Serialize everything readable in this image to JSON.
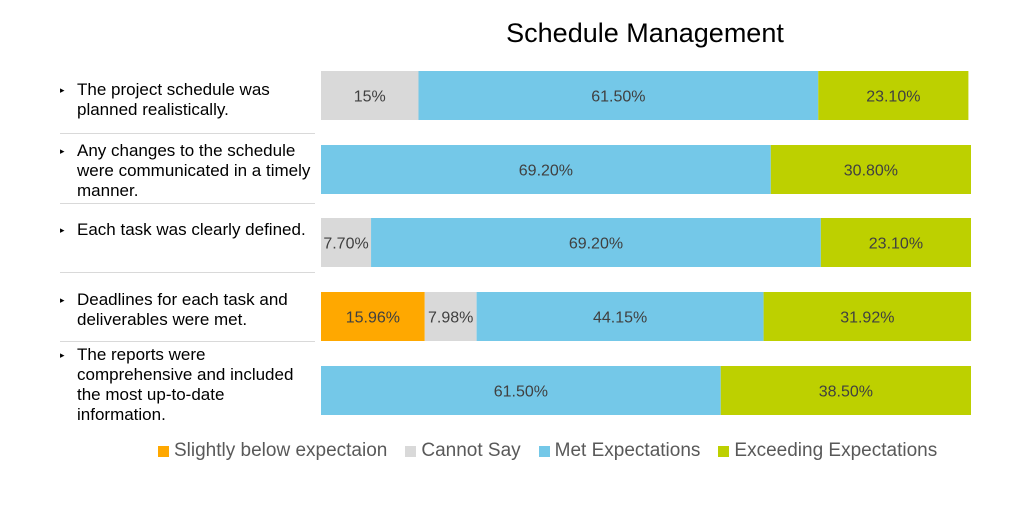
{
  "chart_data": {
    "type": "bar",
    "orientation": "horizontal",
    "stacked": true,
    "title": "Schedule Management",
    "categories": [
      "The project schedule was planned realistically.",
      "Any changes to the schedule were communicated in a timely manner.",
      "Each task was clearly defined.",
      "Deadlines for each task and deliverables were met.",
      "The reports were comprehensive and included the most up-to-date information."
    ],
    "series": [
      {
        "name": "Slightly below expectaion",
        "color": "#FFA800",
        "values": [
          0,
          0,
          0,
          15.96,
          0
        ],
        "labels": [
          "",
          "",
          "",
          "15.96%",
          ""
        ]
      },
      {
        "name": "Cannot Say",
        "color": "#D9D9D9",
        "values": [
          15,
          0,
          7.7,
          7.98,
          0
        ],
        "labels": [
          "15%",
          "",
          "7.70%",
          "7.98%",
          ""
        ]
      },
      {
        "name": "Met Expectations",
        "color": "#74C8E8",
        "values": [
          61.5,
          69.2,
          69.2,
          44.15,
          61.5
        ],
        "labels": [
          "61.50%",
          "69.20%",
          "69.20%",
          "44.15%",
          "61.50%"
        ]
      },
      {
        "name": "Exceeding Expectations",
        "color": "#BDD000",
        "values": [
          23.1,
          30.8,
          23.1,
          31.92,
          38.5
        ],
        "labels": [
          "23.10%",
          "30.80%",
          "23.10%",
          "31.92%",
          "38.50%"
        ]
      }
    ],
    "xlim": [
      0,
      100
    ],
    "legend_position": "bottom",
    "grid": false
  },
  "row_labels": [
    "The project schedule was planned realistically.",
    "Any changes to the schedule were communicated in a timely manner.",
    "Each task was clearly defined.",
    "Deadlines for each task and deliverables were met.",
    "The reports were comprehensive and included the most up-to-date information."
  ],
  "bullet_glyph": "▸"
}
